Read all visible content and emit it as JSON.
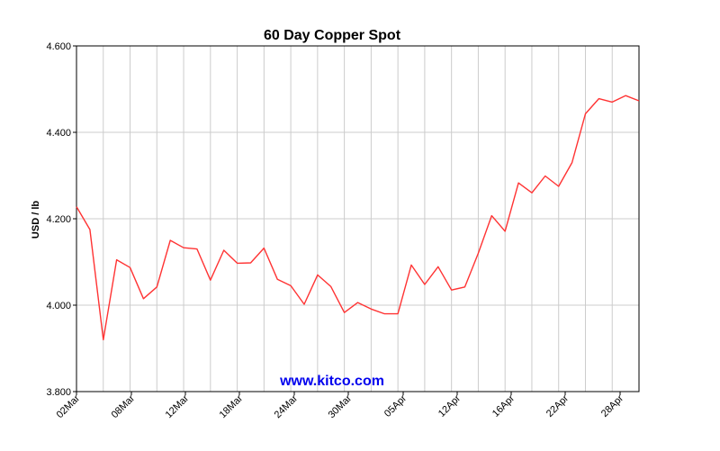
{
  "chart_data": {
    "type": "line",
    "title": "60 Day Copper Spot",
    "xlabel": "",
    "ylabel": "USD / lb",
    "ylim": [
      3.8,
      4.6
    ],
    "yticks": [
      "4.600",
      "4.400",
      "4.200",
      "4.000",
      "3.800"
    ],
    "xtick_labels": [
      "02Mar",
      "08Mar",
      "12Mar",
      "18Mar",
      "24Mar",
      "30Mar",
      "05Apr",
      "12Apr",
      "16Apr",
      "22Apr",
      "28Apr"
    ],
    "grid": true,
    "line_color": "#ff3333",
    "watermark": "www.kitco.com",
    "watermark_color": "#0000ee",
    "series": [
      {
        "values": [
          4.228,
          4.175,
          3.92,
          4.105,
          4.087,
          4.015,
          4.042,
          4.15,
          4.133,
          4.13,
          4.058,
          4.127,
          4.097,
          4.098,
          4.132,
          4.06,
          4.045,
          4.002,
          4.07,
          4.043,
          3.983,
          4.006,
          3.991,
          3.98,
          3.98,
          4.093,
          4.048,
          4.089,
          4.035,
          4.042,
          4.12,
          4.207,
          4.171,
          4.283,
          4.26,
          4.299,
          4.275,
          4.33,
          4.443,
          4.478,
          4.47,
          4.485,
          4.473
        ]
      }
    ]
  }
}
